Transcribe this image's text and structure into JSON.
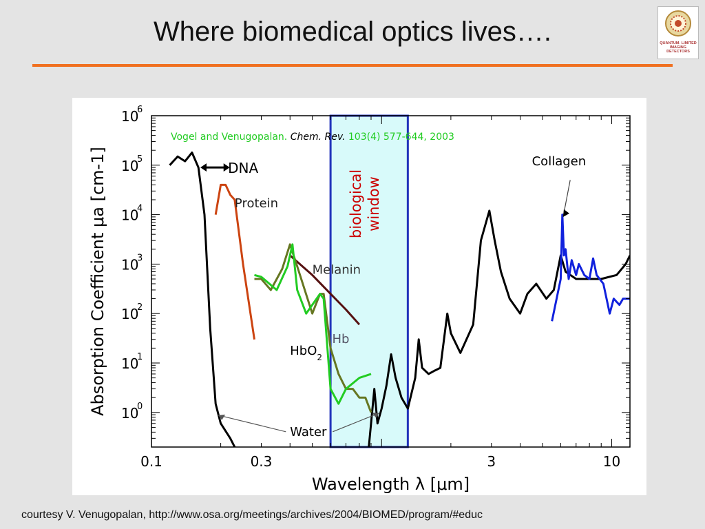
{
  "slide": {
    "title": "Where biomedical optics lives….",
    "footer": "courtesy V. Venugopalan, http://www.osa.org/meetings/archives/2004/BIOMED/program/#educ",
    "logo_text": "QUANTUM- LIMITED IMAGING DETECTORS",
    "accent_color": "#f07020"
  },
  "chart_data": {
    "type": "line",
    "xlabel": "Wavelength λ [μm]",
    "ylabel": "Absorption Coefficient μa [cm-1]",
    "xscale": "log",
    "yscale": "log",
    "xlim": [
      0.1,
      12
    ],
    "ylim": [
      0.2,
      1000000
    ],
    "x_ticks": [
      {
        "value": 0.1,
        "label": "0.1"
      },
      {
        "value": 0.3,
        "label": "0.3"
      },
      {
        "value": 3,
        "label": "3"
      },
      {
        "value": 10,
        "label": "10"
      }
    ],
    "y_ticks": [
      {
        "value": 1,
        "base": "10",
        "exp": "0"
      },
      {
        "value": 10,
        "base": "10",
        "exp": "1"
      },
      {
        "value": 100,
        "base": "10",
        "exp": "2"
      },
      {
        "value": 1000,
        "base": "10",
        "exp": "3"
      },
      {
        "value": 10000,
        "base": "10",
        "exp": "4"
      },
      {
        "value": 100000,
        "base": "10",
        "exp": "5"
      },
      {
        "value": 1000000,
        "base": "10",
        "exp": "6"
      }
    ],
    "citation": {
      "authors": "Vogel and Venugopalan.",
      "journal": "Chem. Rev.",
      "details": "103(4) 577-644, 2003",
      "color": "#22cc22"
    },
    "window": {
      "label_line1": "biological",
      "label_line2": "window",
      "x_range": [
        0.6,
        1.3
      ],
      "fill": "#d8fafa",
      "stroke": "#2233bb",
      "label_color": "#cc0000"
    },
    "annotations": {
      "dna": "DNA",
      "protein": "Protein",
      "melanin": "Melanin",
      "hb": "Hb",
      "hbo2_base": "HbO",
      "hbo2_sub": "2",
      "water": "Water",
      "collagen": "Collagen"
    },
    "series": [
      {
        "key": "water_uv",
        "color": "#000000",
        "points": [
          [
            0.12,
            100000
          ],
          [
            0.13,
            150000
          ],
          [
            0.14,
            120000
          ],
          [
            0.15,
            180000
          ],
          [
            0.16,
            90000
          ],
          [
            0.17,
            10000
          ],
          [
            0.18,
            50
          ],
          [
            0.19,
            1.5
          ],
          [
            0.2,
            0.6
          ],
          [
            0.22,
            0.3
          ],
          [
            0.23,
            0.2
          ]
        ]
      },
      {
        "key": "water_ir",
        "color": "#000000",
        "points": [
          [
            0.88,
            0.2
          ],
          [
            0.93,
            3
          ],
          [
            0.96,
            0.6
          ],
          [
            1.0,
            1.2
          ],
          [
            1.05,
            3.5
          ],
          [
            1.1,
            15
          ],
          [
            1.15,
            5
          ],
          [
            1.22,
            2
          ],
          [
            1.3,
            1.2
          ],
          [
            1.4,
            5
          ],
          [
            1.45,
            30
          ],
          [
            1.5,
            8
          ],
          [
            1.6,
            6
          ],
          [
            1.7,
            7
          ],
          [
            1.8,
            8
          ],
          [
            1.93,
            100
          ],
          [
            2.0,
            40
          ],
          [
            2.2,
            16
          ],
          [
            2.5,
            60
          ],
          [
            2.7,
            3000
          ],
          [
            2.94,
            12000
          ],
          [
            3.1,
            3000
          ],
          [
            3.3,
            700
          ],
          [
            3.6,
            200
          ],
          [
            4.0,
            100
          ],
          [
            4.3,
            250
          ],
          [
            4.7,
            400
          ],
          [
            5.2,
            200
          ],
          [
            5.6,
            300
          ],
          [
            6.0,
            1500
          ],
          [
            6.3,
            700
          ],
          [
            7.0,
            500
          ],
          [
            9.0,
            500
          ],
          [
            10.5,
            600
          ],
          [
            11.5,
            1000
          ],
          [
            12,
            1500
          ]
        ]
      },
      {
        "key": "protein",
        "color": "#cc4411",
        "points": [
          [
            0.19,
            10000
          ],
          [
            0.2,
            40000
          ],
          [
            0.21,
            40000
          ],
          [
            0.22,
            25000
          ],
          [
            0.23,
            20000
          ],
          [
            0.25,
            1000
          ],
          [
            0.28,
            30
          ]
        ]
      },
      {
        "key": "melanin",
        "color": "#551111",
        "points": [
          [
            0.4,
            1500
          ],
          [
            0.5,
            600
          ],
          [
            0.6,
            250
          ],
          [
            0.7,
            120
          ],
          [
            0.8,
            60
          ]
        ]
      },
      {
        "key": "hb",
        "color": "#667722",
        "points": [
          [
            0.28,
            500
          ],
          [
            0.3,
            500
          ],
          [
            0.33,
            300
          ],
          [
            0.37,
            800
          ],
          [
            0.4,
            2500
          ],
          [
            0.43,
            900
          ],
          [
            0.5,
            100
          ],
          [
            0.54,
            250
          ],
          [
            0.56,
            250
          ],
          [
            0.6,
            20
          ],
          [
            0.65,
            6
          ],
          [
            0.7,
            3
          ],
          [
            0.75,
            3
          ],
          [
            0.8,
            2
          ],
          [
            0.85,
            2
          ],
          [
            0.9,
            1
          ]
        ]
      },
      {
        "key": "hbo2",
        "color": "#22cc22",
        "points": [
          [
            0.28,
            600
          ],
          [
            0.3,
            550
          ],
          [
            0.35,
            300
          ],
          [
            0.39,
            900
          ],
          [
            0.41,
            2500
          ],
          [
            0.43,
            300
          ],
          [
            0.47,
            100
          ],
          [
            0.54,
            250
          ],
          [
            0.56,
            200
          ],
          [
            0.6,
            3
          ],
          [
            0.65,
            1.5
          ],
          [
            0.7,
            3
          ],
          [
            0.8,
            5
          ],
          [
            0.9,
            6
          ]
        ]
      },
      {
        "key": "collagen",
        "color": "#1122dd",
        "points": [
          [
            5.5,
            70
          ],
          [
            6.0,
            500
          ],
          [
            6.1,
            10000
          ],
          [
            6.2,
            1500
          ],
          [
            6.3,
            2000
          ],
          [
            6.5,
            500
          ],
          [
            6.7,
            1200
          ],
          [
            7.0,
            600
          ],
          [
            7.2,
            1000
          ],
          [
            7.6,
            600
          ],
          [
            8.0,
            500
          ],
          [
            8.3,
            1300
          ],
          [
            8.6,
            600
          ],
          [
            9.2,
            400
          ],
          [
            9.8,
            100
          ],
          [
            10.2,
            200
          ],
          [
            10.8,
            150
          ],
          [
            11.2,
            200
          ],
          [
            12,
            200
          ]
        ]
      }
    ]
  }
}
